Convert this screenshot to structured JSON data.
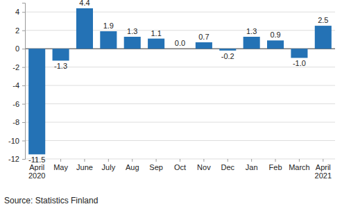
{
  "chart_data": {
    "type": "bar",
    "categories": [
      "April 2020",
      "May",
      "June",
      "July",
      "Aug",
      "Sep",
      "Oct",
      "Nov",
      "Dec",
      "Jan",
      "Feb",
      "March",
      "April 2021"
    ],
    "values": [
      -11.5,
      -1.3,
      4.4,
      1.9,
      1.3,
      1.1,
      0.0,
      0.7,
      -0.2,
      1.3,
      0.9,
      -1.0,
      2.5
    ],
    "value_labels": [
      "-11.5",
      "-1.3",
      "4.4",
      "1.9",
      "1.3",
      "1.1",
      "0.0",
      "0.7",
      "-0.2",
      "1.3",
      "0.9",
      "-1.0",
      "2.5"
    ],
    "color": "#2472b5",
    "ylim": [
      -12,
      5
    ],
    "yticks": [
      -12,
      -10,
      -8,
      -6,
      -4,
      -2,
      0,
      2,
      4
    ],
    "grid": true,
    "data_labels": true,
    "source": "Source: Statistics Finland"
  }
}
